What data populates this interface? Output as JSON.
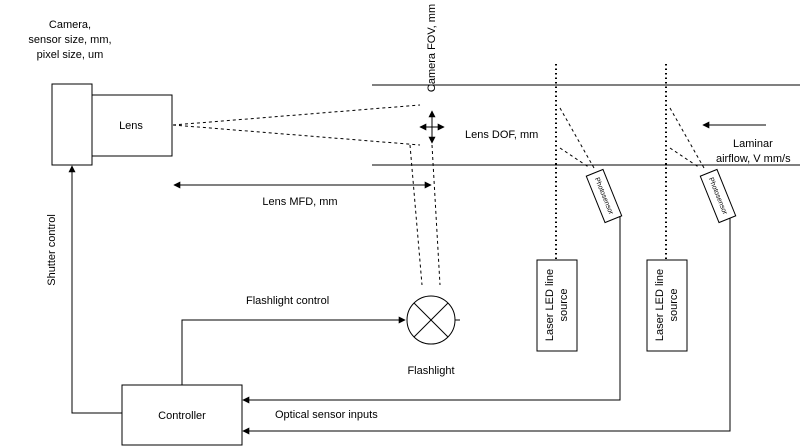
{
  "labels": {
    "camera_line1": "Camera,",
    "camera_line2": "sensor size, mm,",
    "camera_line3": "pixel size, um",
    "lens": "Lens",
    "camera_fov": "Camera FOV, mm",
    "lens_dof": "Lens DOF, mm",
    "laminar_line1": "Laminar",
    "laminar_line2": "airflow, V mm/s",
    "lens_mfd": "Lens MFD, mm",
    "shutter_control": "Shutter control",
    "flashlight_control": "Flashlight control",
    "flashlight": "Flashlight",
    "controller": "Controller",
    "optical_sensor_inputs": "Optical sensor inputs",
    "photosensor_1": "Photosensor",
    "photosensor_2": "Photosensor",
    "laser_source_1_line1": "Laser LED line",
    "laser_source_1_line2": "source",
    "laser_source_2_line1": "Laser LED line",
    "laser_source_2_line2": "source"
  }
}
